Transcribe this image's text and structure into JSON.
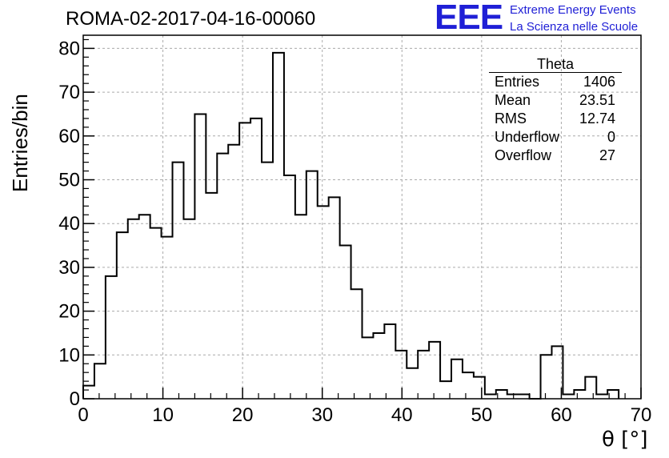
{
  "header": {
    "run_title": "ROMA-02-2017-04-16-00060",
    "logo_text": "EEE",
    "logo_line1": "Extreme Energy Events",
    "logo_line2": "La Scienza nelle Scuole",
    "logo_color": "#1f1fd6"
  },
  "stats_box": {
    "title": "Theta",
    "rows": [
      {
        "label": "Entries",
        "value": "1406"
      },
      {
        "label": "Mean",
        "value": "23.51"
      },
      {
        "label": "RMS",
        "value": "12.74"
      },
      {
        "label": "Underflow",
        "value": "0"
      },
      {
        "label": "Overflow",
        "value": "27"
      }
    ]
  },
  "chart_data": {
    "type": "bar",
    "style": "step-histogram",
    "title": "ROMA-02-2017-04-16-00060",
    "xlabel": "θ [°]",
    "ylabel": "Entries/bin",
    "xlim": [
      0,
      70
    ],
    "ylim": [
      0,
      83
    ],
    "bin_width": 1.4,
    "grid": true,
    "x_ticks": [
      0,
      10,
      20,
      30,
      40,
      50,
      60,
      70
    ],
    "y_ticks": [
      0,
      10,
      20,
      30,
      40,
      50,
      60,
      70,
      80
    ],
    "values": [
      3,
      8,
      28,
      38,
      41,
      42,
      39,
      37,
      54,
      41,
      65,
      47,
      56,
      58,
      63,
      64,
      54,
      79,
      51,
      42,
      52,
      44,
      46,
      35,
      25,
      14,
      15,
      17,
      11,
      7,
      11,
      13,
      4,
      9,
      6,
      5,
      1,
      2,
      1,
      1,
      0,
      10,
      12,
      1,
      2,
      5,
      1,
      2
    ],
    "line_color": "#000000",
    "grid_color": "#aaaaaa"
  }
}
